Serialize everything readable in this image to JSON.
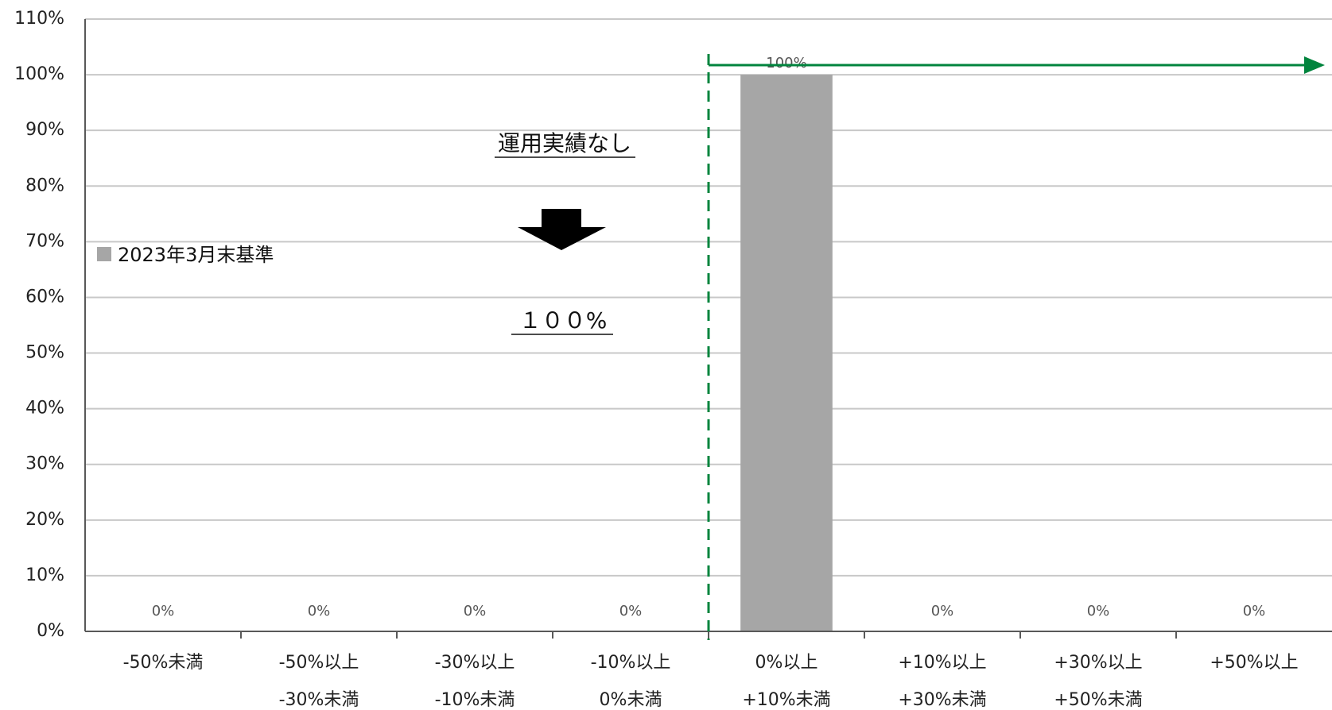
{
  "chart_data": {
    "type": "bar",
    "categories": [
      [
        "-50%未満",
        ""
      ],
      [
        "-50%以上",
        "-30%未満"
      ],
      [
        "-30%以上",
        "-10%未満"
      ],
      [
        "-10%以上",
        "0%未満"
      ],
      [
        "0%以上",
        "+10%未満"
      ],
      [
        "+10%以上",
        "+30%未満"
      ],
      [
        "+30%以上",
        "+50%未満"
      ],
      [
        "+50%以上",
        ""
      ]
    ],
    "series": [
      {
        "name": "2023年3月末基準",
        "values": [
          0,
          0,
          0,
          0,
          100,
          0,
          0,
          0
        ],
        "labels": [
          "0%",
          "0%",
          "0%",
          "0%",
          "100%",
          "0%",
          "0%",
          "0%"
        ],
        "color": "#a6a6a6"
      }
    ],
    "y_ticks": [
      "0%",
      "10%",
      "20%",
      "30%",
      "40%",
      "50%",
      "60%",
      "70%",
      "80%",
      "90%",
      "100%",
      "110%"
    ],
    "ylim": [
      0,
      110
    ],
    "grid": true,
    "legend": "left-middle",
    "annotations": {
      "note": "運用実績なし",
      "result": "１００%"
    },
    "colors": {
      "marker": "#00843d",
      "axis": "#595959",
      "grid": "#c8c8c8"
    }
  }
}
